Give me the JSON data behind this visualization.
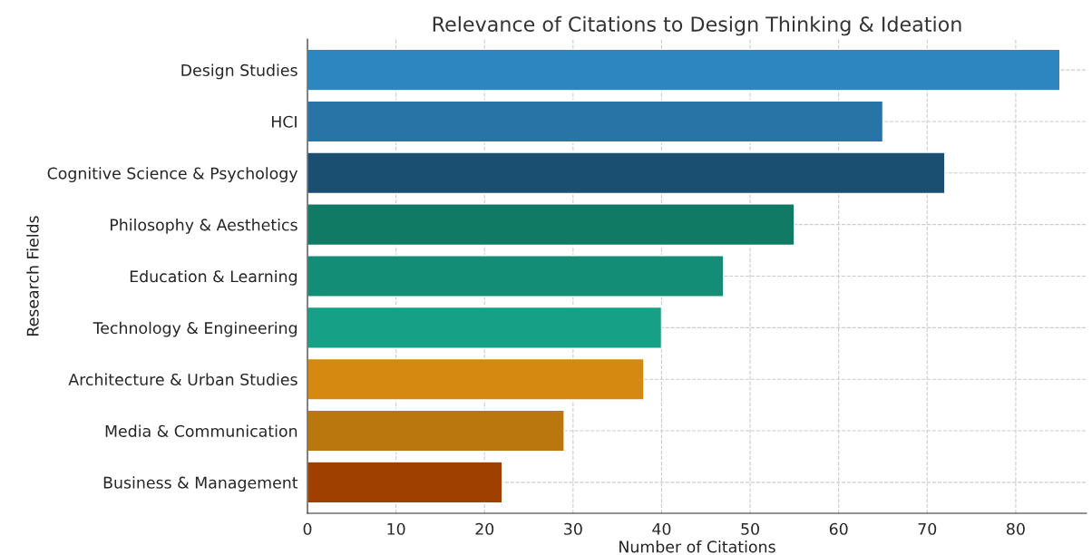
{
  "chart_data": {
    "type": "bar",
    "orientation": "horizontal",
    "title": "Relevance of Citations to Design Thinking & Ideation",
    "xlabel": "Number of Citations",
    "ylabel": "Research Fields",
    "categories": [
      "Design Studies",
      "HCI",
      "Cognitive Science & Psychology",
      "Philosophy & Aesthetics",
      "Education & Learning",
      "Technology & Engineering",
      "Architecture & Urban Studies",
      "Media & Communication",
      "Business & Management"
    ],
    "values": [
      85,
      65,
      72,
      55,
      47,
      40,
      38,
      29,
      22
    ],
    "colors": [
      "#2e86c1",
      "#2874a6",
      "#1b4f72",
      "#117a65",
      "#138d75",
      "#16a085",
      "#d68910",
      "#b9770e",
      "#a04000"
    ],
    "xlim": [
      0,
      88
    ],
    "xticks": [
      0,
      10,
      20,
      30,
      40,
      50,
      60,
      70,
      80
    ],
    "grid": true,
    "line_style": "dashed"
  }
}
